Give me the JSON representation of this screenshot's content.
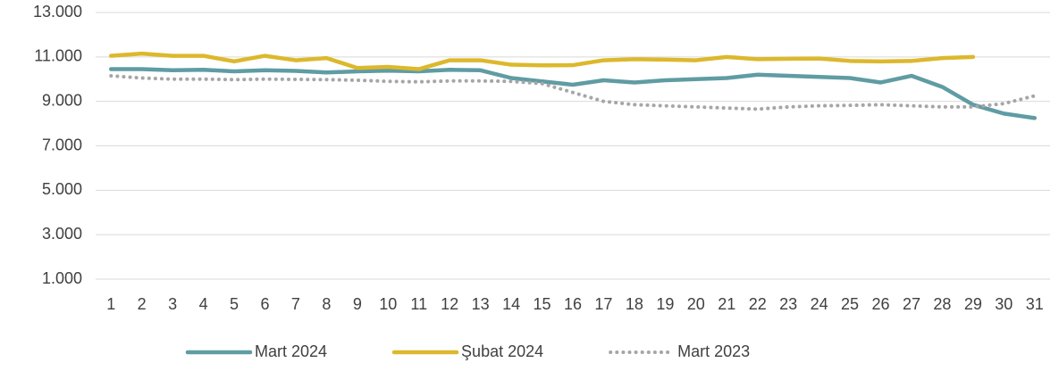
{
  "chart_data": {
    "type": "line",
    "categories": [
      "1",
      "2",
      "3",
      "4",
      "5",
      "6",
      "7",
      "8",
      "9",
      "10",
      "11",
      "12",
      "13",
      "14",
      "15",
      "16",
      "17",
      "18",
      "19",
      "20",
      "21",
      "22",
      "23",
      "24",
      "25",
      "26",
      "27",
      "28",
      "29",
      "30",
      "31"
    ],
    "series": [
      {
        "name": "Mart 2024",
        "color": "#5f9ca3",
        "style": "solid",
        "values": [
          10450,
          10450,
          10400,
          10420,
          10350,
          10400,
          10370,
          10300,
          10350,
          10380,
          10350,
          10420,
          10400,
          10050,
          9900,
          9750,
          9950,
          9850,
          9950,
          10000,
          10050,
          10200,
          10150,
          10100,
          10050,
          9850,
          10150,
          9650,
          8850,
          8450,
          8250
        ]
      },
      {
        "name": "Şubat 2024",
        "color": "#dcb82c",
        "style": "solid",
        "values": [
          11050,
          11150,
          11050,
          11050,
          10800,
          11050,
          10850,
          10950,
          10500,
          10550,
          10450,
          10850,
          10850,
          10650,
          10620,
          10630,
          10850,
          10900,
          10880,
          10850,
          11000,
          10900,
          10920,
          10930,
          10820,
          10800,
          10820,
          10950,
          11000,
          null,
          null
        ]
      },
      {
        "name": "Mart 2023",
        "color": "#a6a6a6",
        "style": "dotted",
        "values": [
          10150,
          10050,
          10000,
          10000,
          9980,
          10000,
          9990,
          9980,
          9950,
          9900,
          9880,
          9920,
          9920,
          9900,
          9800,
          9400,
          9000,
          8850,
          8800,
          8750,
          8700,
          8650,
          8750,
          8800,
          8820,
          8850,
          8800,
          8750,
          8750,
          8900,
          9250
        ]
      }
    ],
    "ylim": [
      1000,
      13000
    ],
    "yticks": [
      {
        "value": 1000,
        "label": "1.000"
      },
      {
        "value": 3000,
        "label": "3.000"
      },
      {
        "value": 5000,
        "label": "5.000"
      },
      {
        "value": 7000,
        "label": "7.000"
      },
      {
        "value": 9000,
        "label": "9.000"
      },
      {
        "value": 11000,
        "label": "11.000"
      },
      {
        "value": 13000,
        "label": "13.000"
      }
    ],
    "grid": true,
    "legend": "bottom"
  }
}
